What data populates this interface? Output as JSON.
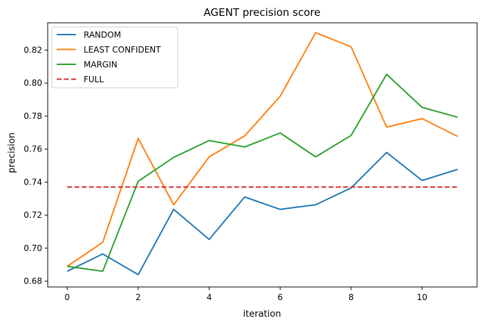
{
  "chart_data": {
    "type": "line",
    "title": "AGENT precision score",
    "xlabel": "iteration",
    "ylabel": "precision",
    "xlim": [
      -0.55,
      11.55
    ],
    "ylim": [
      0.6765,
      0.8365
    ],
    "xticks": [
      0,
      2,
      4,
      6,
      8,
      10
    ],
    "yticks": [
      0.68,
      0.7,
      0.72,
      0.74,
      0.76,
      0.78,
      0.8,
      0.82
    ],
    "xtick_labels": [
      "0",
      "2",
      "4",
      "6",
      "8",
      "10"
    ],
    "ytick_labels": [
      "0.68",
      "0.70",
      "0.72",
      "0.74",
      "0.76",
      "0.78",
      "0.80",
      "0.82"
    ],
    "grid": false,
    "legend_position": "top-left",
    "x": [
      0,
      1,
      2,
      3,
      4,
      5,
      6,
      7,
      8,
      9,
      10,
      11
    ],
    "series": [
      {
        "name": "RANDOM",
        "color": "#1f77b4",
        "style": "solid",
        "values": [
          0.686,
          0.6965,
          0.684,
          0.7235,
          0.7053,
          0.731,
          0.7235,
          0.7263,
          0.7365,
          0.758,
          0.741,
          0.7477
        ]
      },
      {
        "name": "LEAST CONFIDENT",
        "color": "#ff7f0e",
        "style": "solid",
        "values": [
          0.689,
          0.7035,
          0.7665,
          0.7263,
          0.7553,
          0.768,
          0.792,
          0.8305,
          0.822,
          0.7733,
          0.7785,
          0.7677
        ]
      },
      {
        "name": "MARGIN",
        "color": "#2ca02c",
        "style": "solid",
        "values": [
          0.689,
          0.686,
          0.7405,
          0.755,
          0.7652,
          0.7613,
          0.7698,
          0.7553,
          0.7683,
          0.8053,
          0.7853,
          0.7793
        ]
      },
      {
        "name": "FULL",
        "color": "#d62728",
        "style": "dashed",
        "values": [
          0.737,
          0.737,
          0.737,
          0.737,
          0.737,
          0.737,
          0.737,
          0.737,
          0.737,
          0.737,
          0.737,
          0.737
        ]
      }
    ]
  }
}
